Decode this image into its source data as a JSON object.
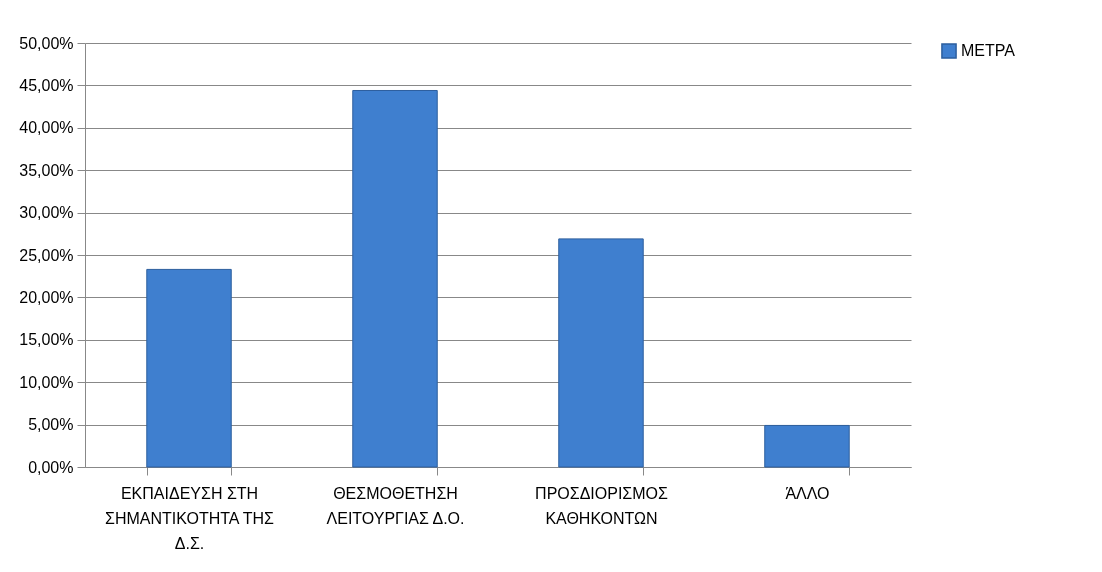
{
  "chart_data": {
    "type": "bar",
    "categories": [
      "ΕΚΠΑΙΔΕΥΣΗ ΣΤΗ ΣΗΜΑΝΤΙΚΟΤΗΤΑ ΤΗΣ Δ.Σ.",
      "ΘΕΣΜΟΘΕΤΗΣΗ ΛΕΙΤΟΥΡΓΙΑΣ Δ.Ο.",
      "ΠΡΟΣΔΙΟΡΙΣΜΟΣ ΚΑΘΗΚΟΝΤΩΝ",
      "ΆΛΛΟ"
    ],
    "series": [
      {
        "name": "ΜΕΤΡΑ",
        "color": "#3f7fcf",
        "values": [
          23.3,
          44.4,
          26.9,
          4.9
        ]
      }
    ],
    "ylim": [
      0,
      50
    ],
    "yticks": [
      {
        "value": 0,
        "label": "0,00%"
      },
      {
        "value": 5,
        "label": "5,00%"
      },
      {
        "value": 10,
        "label": "10,00%"
      },
      {
        "value": 15,
        "label": "15,00%"
      },
      {
        "value": 20,
        "label": "20,00%"
      },
      {
        "value": 25,
        "label": "25,00%"
      },
      {
        "value": 30,
        "label": "30,00%"
      },
      {
        "value": 35,
        "label": "35,00%"
      },
      {
        "value": 40,
        "label": "40,00%"
      },
      {
        "value": 45,
        "label": "45,00%"
      },
      {
        "value": 50,
        "label": "50,00%"
      }
    ],
    "grid": "y",
    "legend": "right"
  }
}
